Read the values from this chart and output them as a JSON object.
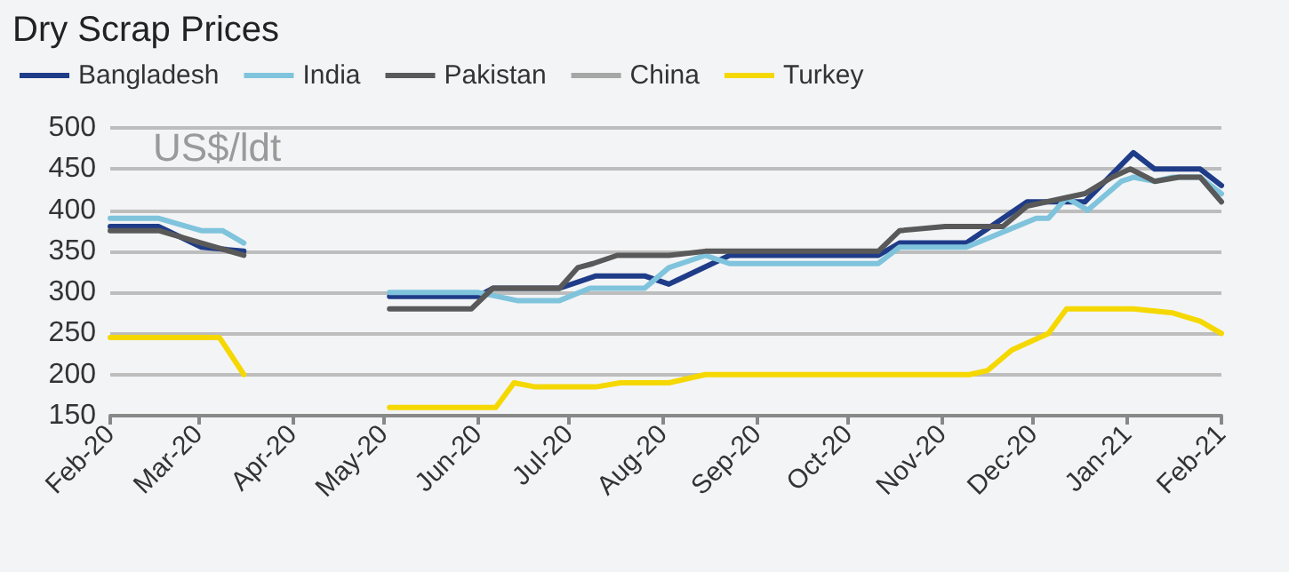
{
  "chart_data": {
    "type": "line",
    "title": "Dry Scrap Prices",
    "ylabel": "US$/ldt",
    "marker": "none",
    "line_style": "solid",
    "grid": "y",
    "legend": "top",
    "xlim": [
      "2020-02-01",
      "2021-02-01"
    ],
    "xticks": [
      {
        "value": "2020-02-01",
        "label": "Feb-20"
      },
      {
        "value": "2020-03-01",
        "label": "Mar-20"
      },
      {
        "value": "2020-04-01",
        "label": "Apr-20"
      },
      {
        "value": "2020-05-01",
        "label": "May-20"
      },
      {
        "value": "2020-06-01",
        "label": "Jun-20"
      },
      {
        "value": "2020-07-01",
        "label": "Jul-20"
      },
      {
        "value": "2020-08-01",
        "label": "Aug-20"
      },
      {
        "value": "2020-09-01",
        "label": "Sep-20"
      },
      {
        "value": "2020-10-01",
        "label": "Oct-20"
      },
      {
        "value": "2020-11-01",
        "label": "Nov-20"
      },
      {
        "value": "2020-12-01",
        "label": "Dec-20"
      },
      {
        "value": "2021-01-01",
        "label": "Jan-21"
      },
      {
        "value": "2021-02-01",
        "label": "Feb-21"
      }
    ],
    "ylim": [
      150,
      500
    ],
    "yticks": [
      150,
      200,
      250,
      300,
      350,
      400,
      450,
      500
    ],
    "series": [
      {
        "name": "Bangladesh",
        "color": "#1f3c88",
        "x": [
          "2020-02-01",
          "2020-02-17",
          "2020-03-02",
          "2020-03-16",
          "2020-04-01",
          "2020-05-03",
          "2020-06-01",
          "2020-06-06",
          "2020-06-28",
          "2020-07-10",
          "2020-07-26",
          "2020-08-03",
          "2020-08-23",
          "2020-10-11",
          "2020-10-18",
          "2020-11-09",
          "2020-11-29",
          "2020-12-18",
          "2021-01-03",
          "2021-01-10",
          "2021-01-25",
          "2021-02-01"
        ],
        "values": [
          380,
          380,
          355,
          350,
          null,
          295,
          295,
          305,
          305,
          320,
          320,
          310,
          345,
          345,
          360,
          360,
          410,
          410,
          470,
          450,
          450,
          430
        ]
      },
      {
        "name": "India",
        "color": "#7fc4dc",
        "x": [
          "2020-02-01",
          "2020-02-17",
          "2020-03-02",
          "2020-03-09",
          "2020-03-16",
          "2020-04-01",
          "2020-05-03",
          "2020-06-01",
          "2020-06-14",
          "2020-06-28",
          "2020-07-08",
          "2020-07-26",
          "2020-08-03",
          "2020-08-15",
          "2020-08-23",
          "2020-10-11",
          "2020-10-18",
          "2020-11-09",
          "2020-12-02",
          "2020-12-06",
          "2020-12-12",
          "2020-12-19",
          "2020-12-30",
          "2021-01-03",
          "2021-01-10",
          "2021-01-16",
          "2021-01-25",
          "2021-02-01"
        ],
        "values": [
          390,
          390,
          375,
          375,
          360,
          null,
          300,
          300,
          290,
          290,
          305,
          305,
          330,
          345,
          335,
          335,
          355,
          355,
          390,
          390,
          415,
          400,
          435,
          440,
          435,
          440,
          440,
          420
        ]
      },
      {
        "name": "Pakistan",
        "color": "#595959",
        "x": [
          "2020-02-01",
          "2020-02-17",
          "2020-03-02",
          "2020-03-16",
          "2020-04-01",
          "2020-05-03",
          "2020-05-30",
          "2020-06-06",
          "2020-06-28",
          "2020-07-04",
          "2020-07-09",
          "2020-07-17",
          "2020-08-03",
          "2020-08-15",
          "2020-10-11",
          "2020-10-18",
          "2020-11-02",
          "2020-11-21",
          "2020-11-29",
          "2020-12-18",
          "2020-12-27",
          "2021-01-02",
          "2021-01-10",
          "2021-01-18",
          "2021-01-25",
          "2021-02-01"
        ],
        "values": [
          375,
          375,
          360,
          345,
          null,
          280,
          280,
          305,
          305,
          330,
          335,
          345,
          345,
          350,
          350,
          375,
          380,
          380,
          405,
          420,
          440,
          450,
          435,
          440,
          440,
          410
        ]
      },
      {
        "name": "China",
        "color": "#a6a6a6"
      },
      {
        "name": "Turkey",
        "color": "#f5d800",
        "x": [
          "2020-02-01",
          "2020-03-08",
          "2020-03-16",
          "2020-04-01",
          "2020-05-03",
          "2020-06-07",
          "2020-06-13",
          "2020-06-20",
          "2020-07-10",
          "2020-07-18",
          "2020-08-03",
          "2020-08-15",
          "2020-11-10",
          "2020-11-16",
          "2020-11-24",
          "2020-12-06",
          "2020-12-12",
          "2021-01-03",
          "2021-01-16",
          "2021-01-25",
          "2021-02-01"
        ],
        "values": [
          245,
          245,
          200,
          null,
          160,
          160,
          190,
          185,
          185,
          190,
          190,
          200,
          200,
          205,
          230,
          250,
          280,
          280,
          275,
          265,
          250
        ]
      }
    ]
  }
}
